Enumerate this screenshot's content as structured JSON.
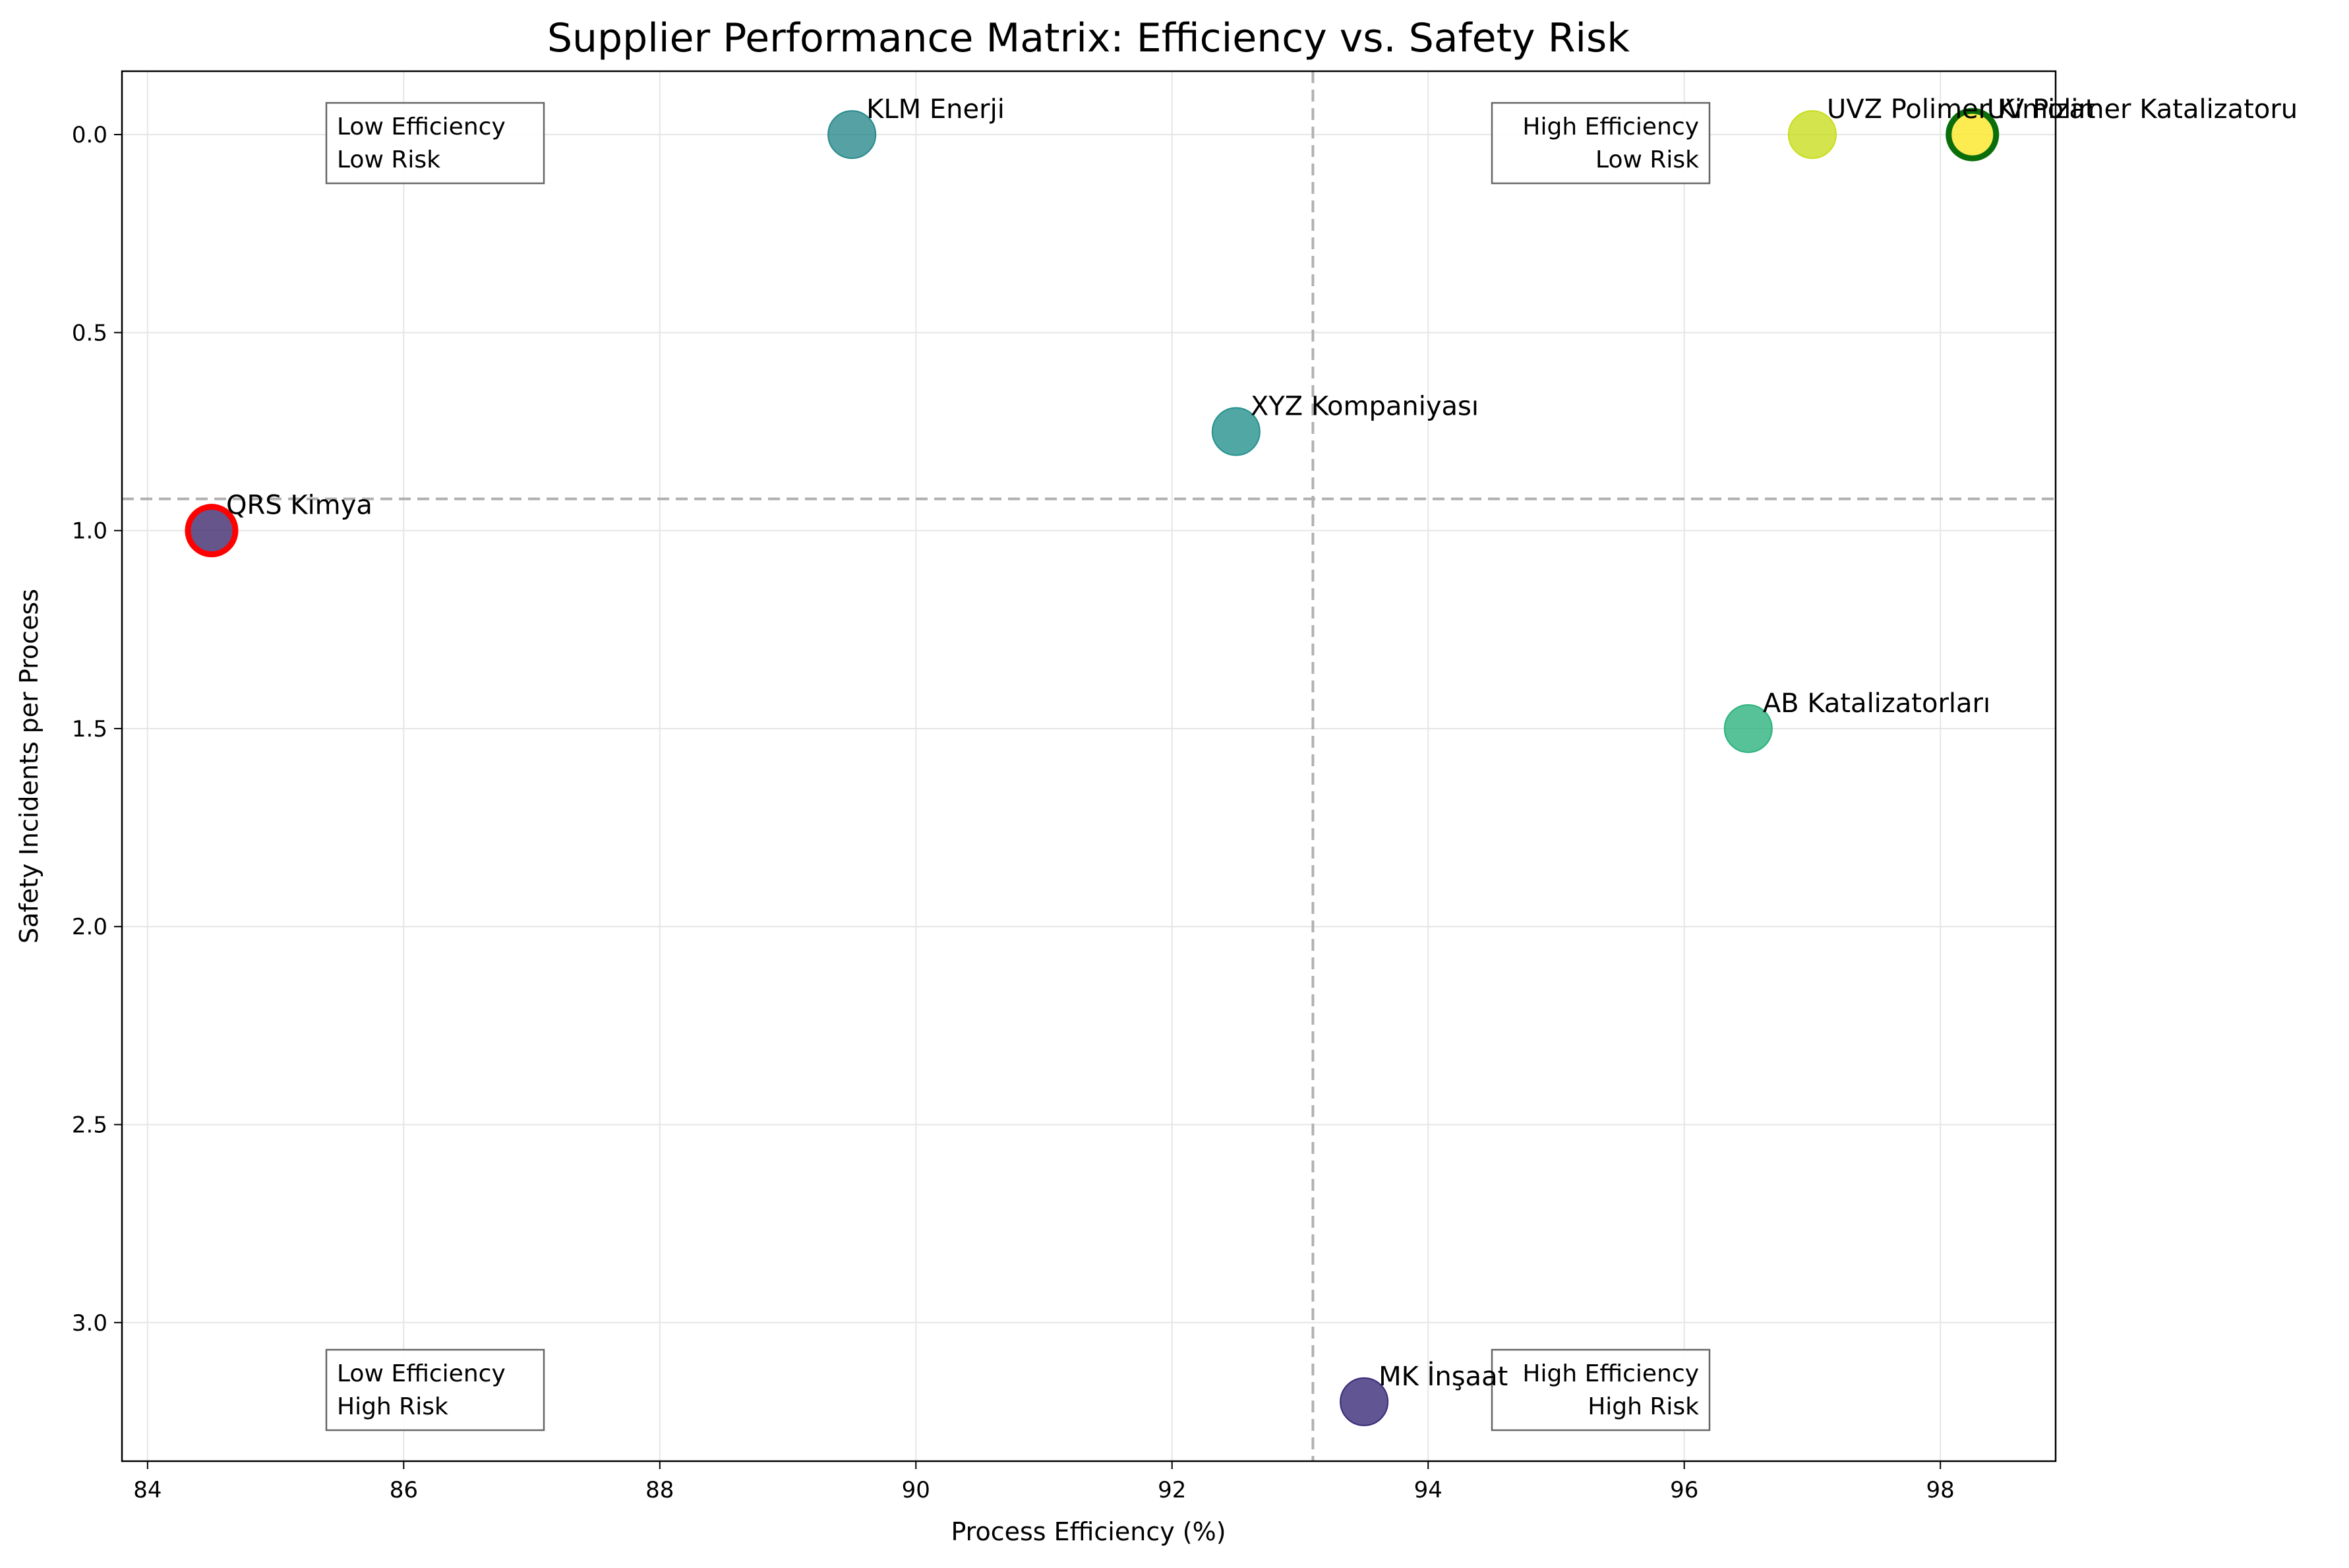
{
  "chart_data": {
    "type": "scatter",
    "title": "Supplier Performance Matrix: Efficiency vs. Safety Risk",
    "xlabel": "Process Efficiency (%)",
    "ylabel": "Safety Incidents per Process",
    "xlim": [
      83.8,
      98.9
    ],
    "ylim": [
      3.35,
      -0.16
    ],
    "y_inverted": true,
    "grid": true,
    "x_ticks": [
      84,
      86,
      88,
      90,
      92,
      94,
      96,
      98
    ],
    "x_tick_labels": [
      "84",
      "86",
      "88",
      "90",
      "92",
      "94",
      "96",
      "98"
    ],
    "y_ticks": [
      0.0,
      0.5,
      1.0,
      1.5,
      2.0,
      2.5,
      3.0
    ],
    "y_tick_labels": [
      "0.0",
      "0.5",
      "1.0",
      "1.5",
      "2.0",
      "2.5",
      "3.0"
    ],
    "reference_lines": {
      "x": 93.1,
      "y": 0.92,
      "style": "dashed",
      "color": "#b0b0b0"
    },
    "quadrant_labels": [
      {
        "line1": "Low Efficiency",
        "line2": "Low Risk",
        "position": "top-left"
      },
      {
        "line1": "High Efficiency",
        "line2": "Low Risk",
        "position": "top-right"
      },
      {
        "line1": "Low Efficiency",
        "line2": "High Risk",
        "position": "bottom-left"
      },
      {
        "line1": "High Efficiency",
        "line2": "High Risk",
        "position": "bottom-right"
      }
    ],
    "points": [
      {
        "label": "KLM Enerji",
        "x": 89.5,
        "y": 0.0,
        "color": "#2a8a8c",
        "highlight": ""
      },
      {
        "label": "XYZ Kompaniyası",
        "x": 92.5,
        "y": 0.75,
        "color": "#26918d",
        "highlight": ""
      },
      {
        "label": "QRS Kimya",
        "x": 84.5,
        "y": 1.0,
        "color": "#3f2a6e",
        "highlight": "#ff0000"
      },
      {
        "label": "AB Katalizatorları",
        "x": 96.5,
        "y": 1.5,
        "color": "#2db27d",
        "highlight": ""
      },
      {
        "label": "MK İnşaat",
        "x": 93.5,
        "y": 3.2,
        "color": "#3a2a78",
        "highlight": ""
      },
      {
        "label": "UVZ Polimer Kimizat",
        "x": 97.0,
        "y": 0.0,
        "color": "#c8dd1f",
        "highlight": ""
      },
      {
        "label": "UV Polimer Katalizatoru",
        "x": 98.25,
        "y": 0.0,
        "color": "#fde725",
        "highlight": "#0a6e0a"
      }
    ]
  }
}
